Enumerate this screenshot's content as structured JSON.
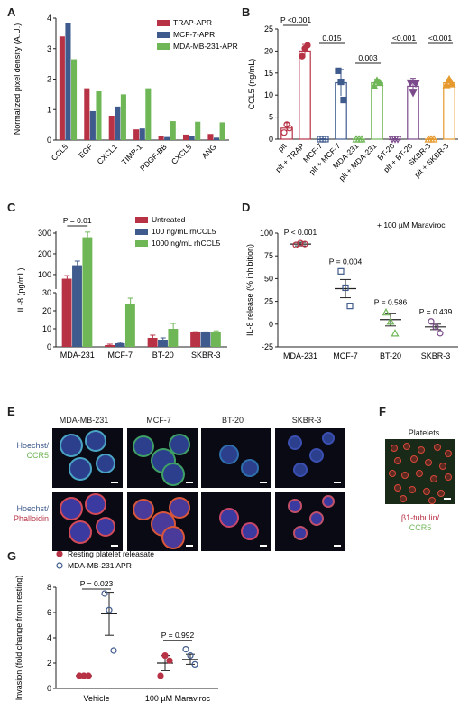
{
  "panel_labels": [
    "A",
    "B",
    "C",
    "D",
    "E",
    "F",
    "G"
  ],
  "chart_data": [
    {
      "id": "A",
      "type": "bar",
      "ylabel": "Normalized pixel density (A.U.)",
      "ylim": [
        0,
        4
      ],
      "yticks": [
        0,
        1,
        2,
        3,
        4
      ],
      "categories": [
        "CCL5",
        "EGF",
        "CXCL1",
        "TIMP-1",
        "PDGF-BB",
        "CXCL5",
        "ANG"
      ],
      "series": [
        {
          "name": "TRAP-APR",
          "color": "#b83246",
          "values": [
            3.4,
            1.7,
            0.8,
            0.35,
            0.12,
            0.18,
            0.2
          ]
        },
        {
          "name": "MCF-7-APR",
          "color": "#3f5a8c",
          "values": [
            3.85,
            0.95,
            1.1,
            0.38,
            0.1,
            0.12,
            0.08
          ]
        },
        {
          "name": "MDA-MB-231-APR",
          "color": "#6fb657",
          "values": [
            2.65,
            1.6,
            1.5,
            1.7,
            0.62,
            0.6,
            0.58
          ]
        }
      ],
      "legend_position": "top-right"
    },
    {
      "id": "B",
      "type": "bar",
      "ylabel": "CCL5 (ng/mL)",
      "ylim": [
        0,
        25
      ],
      "yticks": [
        0,
        5,
        10,
        15,
        20,
        25
      ],
      "categories": [
        "plt",
        "plt + TRAP",
        "MCF-7",
        "plt + MCF-7",
        "MDA-231",
        "plt + MDA-231",
        "BT-20",
        "plt + BT-20",
        "SKBR-3",
        "plt + SKBR-3"
      ],
      "values": [
        2.5,
        20.0,
        0,
        12.8,
        0,
        12.8,
        0,
        12.0,
        0,
        12.8
      ],
      "errors": [
        1.2,
        1.5,
        0.1,
        3.0,
        0.1,
        0.8,
        0.1,
        1.8,
        0.1,
        0.8
      ],
      "colors": [
        "#b83246",
        "#b83246",
        "#3f5a8c",
        "#3f5a8c",
        "#6fb657",
        "#6fb657",
        "#7a4a8a",
        "#7a4a8a",
        "#e69a2e",
        "#e69a2e"
      ],
      "points": [
        [
          1.5,
          3.3,
          2.5
        ],
        [
          18.8,
          20.6,
          21.3
        ],
        [
          0,
          0,
          0
        ],
        [
          15.5,
          13.0,
          8.9
        ],
        [
          0,
          0,
          0
        ],
        [
          12.0,
          13.3,
          12.8
        ],
        [
          0,
          0,
          0
        ],
        [
          12.8,
          10.5,
          12.6
        ],
        [
          0,
          0,
          0
        ],
        [
          12.3,
          13.6,
          12.5
        ]
      ],
      "annotations": [
        {
          "text": "P <0.001",
          "pair": [
            0,
            1
          ]
        },
        {
          "text": "0.015",
          "pair": [
            2,
            3
          ]
        },
        {
          "text": "0.003",
          "pair": [
            4,
            5
          ]
        },
        {
          "text": "<0.001",
          "pair": [
            6,
            7
          ]
        },
        {
          "text": "<0.001",
          "pair": [
            8,
            9
          ]
        }
      ]
    },
    {
      "id": "C",
      "type": "bar",
      "ylabel": "IL-8 (pg/mL)",
      "axis_break": true,
      "lower_ylim": [
        0,
        30
      ],
      "lower_yticks": [
        0,
        10,
        20,
        30
      ],
      "upper_ylim": [
        30,
        300
      ],
      "upper_yticks": [
        100,
        200,
        300
      ],
      "categories": [
        "MDA-231",
        "MCF-7",
        "BT-20",
        "SKBR-3"
      ],
      "series": [
        {
          "name": "Untreated",
          "color": "#b83246",
          "values": [
            80,
            1,
            5,
            8
          ],
          "errors": [
            15,
            0.5,
            1.5,
            0.4
          ]
        },
        {
          "name": "100 ng/mL rhCCL5",
          "color": "#3f5a8c",
          "values": [
            145,
            2,
            4,
            8
          ],
          "errors": [
            20,
            0.5,
            1,
            0.3
          ]
        },
        {
          "name": "1000 ng/mL rhCCL5",
          "color": "#6fb657",
          "values": [
            280,
            24,
            10,
            8.5
          ],
          "errors": [
            25,
            3,
            3,
            0.4
          ]
        }
      ],
      "annotations": [
        {
          "text": "P = 0.01",
          "categories": [
            0,
            0
          ]
        }
      ],
      "legend_position": "top-right"
    },
    {
      "id": "D",
      "type": "scatter",
      "ylabel": "IL-8 release (% inhibition)",
      "ylim": [
        -25,
        100
      ],
      "yticks": [
        -25,
        0,
        25,
        50,
        75,
        100
      ],
      "categories": [
        "MDA-231",
        "MCF-7",
        "BT-20",
        "SKBR-3"
      ],
      "means": [
        88,
        39,
        5,
        -3
      ],
      "errors": [
        2,
        10,
        7,
        3
      ],
      "points": [
        [
          87,
          89,
          88
        ],
        [
          58,
          40,
          20
        ],
        [
          13,
          3,
          -10
        ],
        [
          3,
          -3,
          -10
        ]
      ],
      "colors": [
        "#b83246",
        "#3f5a8c",
        "#6fb657",
        "#7a4a8a"
      ],
      "markers": [
        "circle",
        "square",
        "triangle",
        "circle"
      ],
      "annotations": [
        "P < 0.001",
        "P = 0.004",
        "P = 0.586",
        "P = 0.439"
      ],
      "note": "+ 100 µM Maraviroc"
    },
    {
      "id": "G",
      "type": "scatter",
      "ylabel": "Invasion (fold change from resting)",
      "ylim": [
        0,
        8
      ],
      "yticks": [
        0,
        2,
        4,
        6,
        8
      ],
      "categories": [
        "Vehicle",
        "100 µM Maraviroc"
      ],
      "series": [
        {
          "name": "Resting platelet releasate",
          "color": "#b83246",
          "filled": true,
          "means": [
            1,
            2.0
          ],
          "errors": [
            0,
            0.6
          ],
          "points": [
            [
              1,
              1,
              1
            ],
            [
              1.0,
              2.6,
              2.2
            ]
          ]
        },
        {
          "name": "MDA-MB-231 APR",
          "color": "#3f5a8c",
          "filled": false,
          "means": [
            5.9,
            2.3
          ],
          "errors": [
            1.7,
            0.4
          ],
          "points": [
            [
              7.5,
              6.2,
              3.0
            ],
            [
              3.1,
              2.6,
              1.9
            ]
          ]
        }
      ],
      "annotations": [
        {
          "text": "P = 0.023",
          "category": 0
        },
        {
          "text": "P = 0.992",
          "category": 1
        }
      ],
      "legend_position": "top-left"
    }
  ],
  "panel_e": {
    "columns": [
      "MDA-MB-231",
      "MCF-7",
      "BT-20",
      "SKBR-3"
    ],
    "row1_label_a": "Hoechst/",
    "row1_label_b": "CCR5",
    "row2_label_a": "Hoechst/",
    "row2_label_b": "Phalloidin",
    "row1_color": "#4aa3c4",
    "row2_color": "#d14a5a"
  },
  "panel_f": {
    "title": "Platelets",
    "label_a": "β1-tubulin/",
    "label_b": "CCR5"
  }
}
